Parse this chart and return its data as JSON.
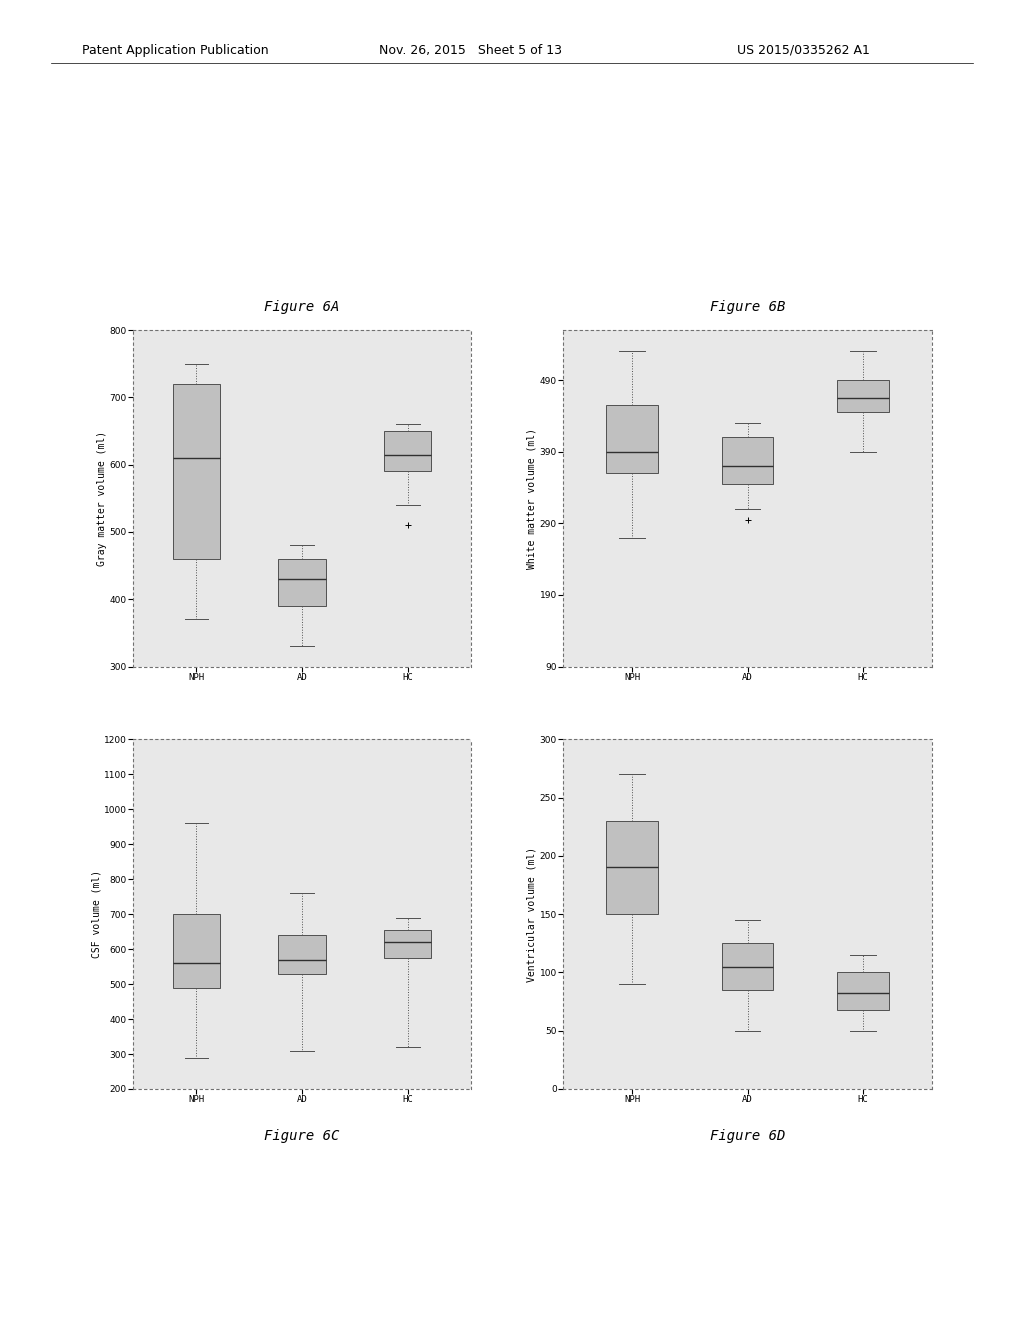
{
  "fig6A": {
    "title": "Figure 6A",
    "ylabel": "Gray matter volume (ml)",
    "ylim": [
      300,
      800
    ],
    "yticks": [
      300,
      400,
      500,
      600,
      700,
      800
    ],
    "groups": [
      "NPH",
      "AD",
      "HC"
    ],
    "boxes": [
      {
        "whislo": 370,
        "q1": 460,
        "med": 610,
        "q3": 720,
        "whishi": 750,
        "fliers": []
      },
      {
        "whislo": 330,
        "q1": 390,
        "med": 430,
        "q3": 460,
        "whishi": 480,
        "fliers": []
      },
      {
        "whislo": 540,
        "q1": 590,
        "med": 615,
        "q3": 650,
        "whishi": 660,
        "fliers": [
          510
        ]
      }
    ]
  },
  "fig6B": {
    "title": "Figure 6B",
    "ylabel": "White matter volume (ml)",
    "ylim": [
      90,
      560
    ],
    "yticks": [
      90,
      190,
      290,
      390,
      490
    ],
    "groups": [
      "NPH",
      "AD",
      "HC"
    ],
    "boxes": [
      {
        "whislo": 270,
        "q1": 360,
        "med": 390,
        "q3": 455,
        "whishi": 530,
        "fliers": []
      },
      {
        "whislo": 310,
        "q1": 345,
        "med": 370,
        "q3": 410,
        "whishi": 430,
        "fliers": [
          295
        ]
      },
      {
        "whislo": 390,
        "q1": 445,
        "med": 465,
        "q3": 490,
        "whishi": 530,
        "fliers": []
      }
    ]
  },
  "fig6C": {
    "title": "Figure 6C",
    "ylabel": "CSF volume (ml)",
    "ylim": [
      200,
      1200
    ],
    "yticks": [
      200,
      300,
      400,
      500,
      600,
      700,
      800,
      900,
      1000,
      1100,
      1200
    ],
    "groups": [
      "NPH",
      "AD",
      "HC"
    ],
    "boxes": [
      {
        "whislo": 290,
        "q1": 490,
        "med": 560,
        "q3": 700,
        "whishi": 960,
        "fliers": []
      },
      {
        "whislo": 310,
        "q1": 530,
        "med": 570,
        "q3": 640,
        "whishi": 760,
        "fliers": []
      },
      {
        "whislo": 320,
        "q1": 575,
        "med": 620,
        "q3": 655,
        "whishi": 690,
        "fliers": []
      }
    ]
  },
  "fig6D": {
    "title": "Figure 6D",
    "ylabel": "Ventricular volume (ml)",
    "ylim": [
      0,
      300
    ],
    "yticks": [
      0,
      50,
      100,
      150,
      200,
      250,
      300
    ],
    "groups": [
      "NPH",
      "AD",
      "HC"
    ],
    "boxes": [
      {
        "whislo": 90,
        "q1": 150,
        "med": 190,
        "q3": 230,
        "whishi": 270,
        "fliers": []
      },
      {
        "whislo": 50,
        "q1": 85,
        "med": 105,
        "q3": 125,
        "whishi": 145,
        "fliers": []
      },
      {
        "whislo": 50,
        "q1": 68,
        "med": 82,
        "q3": 100,
        "whishi": 115,
        "fliers": []
      }
    ]
  },
  "header_left": "Patent Application Publication",
  "header_mid": "Nov. 26, 2015   Sheet 5 of 13",
  "header_right": "US 2015/0335262 A1",
  "background_color": "#e8e8e8",
  "box_facecolor": "#c0c0c0",
  "box_edgecolor": "#505050",
  "whisker_color": "#505050",
  "median_color": "#303030",
  "flier_color": "#505050",
  "title_fontsize": 10,
  "label_fontsize": 7,
  "tick_fontsize": 6.5,
  "font_family": "monospace"
}
